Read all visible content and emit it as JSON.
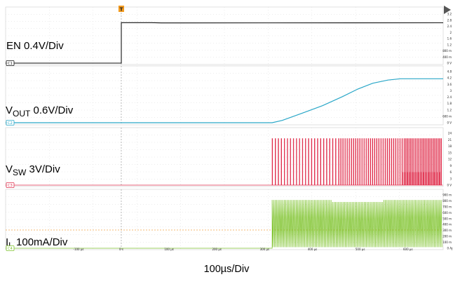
{
  "chart_data": {
    "type": "line",
    "timebase": "100µs/Div",
    "trigger_marker": "T",
    "x_tick_labels": [
      "-100 µs",
      "0 s",
      "100 µs",
      "200 µs",
      "300 µs",
      "400 µs",
      "500 µs",
      "600 µs",
      "700 µs"
    ],
    "channels": [
      {
        "id": "C1",
        "label_main": "EN 0.4V/Div",
        "label_sub": "",
        "label_tail": "",
        "color": "#111111",
        "scale_labels": [
          "3.2",
          "2.8",
          "2.4",
          "2",
          "1.6",
          "1.2",
          "800 m",
          "400 m",
          "0 V"
        ],
        "waveform": "step",
        "points": [
          [
            -230,
            0
          ],
          [
            0,
            0
          ],
          [
            0,
            2.64
          ],
          [
            60,
            2.64
          ],
          [
            80,
            2.62
          ],
          [
            640,
            2.63
          ]
        ]
      },
      {
        "id": "C2",
        "label_main": "V",
        "label_sub": "OUT",
        "label_tail": " 0.6V/Div",
        "color": "#2aa7c8",
        "scale_labels": [
          "4.8",
          "4.2",
          "3.6",
          "3",
          "2.4",
          "1.8",
          "1.2",
          "600 m",
          "0 V"
        ],
        "waveform": "soft-start ramp",
        "points": [
          [
            -230,
            0
          ],
          [
            300,
            0
          ],
          [
            320,
            0.22
          ],
          [
            360,
            0.9
          ],
          [
            400,
            1.6
          ],
          [
            440,
            2.45
          ],
          [
            470,
            3.15
          ],
          [
            500,
            3.7
          ],
          [
            530,
            4.0
          ],
          [
            555,
            4.12
          ],
          [
            580,
            4.12
          ],
          [
            640,
            4.12
          ]
        ]
      },
      {
        "id": "C3",
        "label_main": "V",
        "label_sub": "SW",
        "label_tail": " 3V/Div",
        "color": "#e0304e",
        "scale_labels": [
          "24",
          "21",
          "18",
          "15",
          "12",
          "9",
          "6",
          "3",
          "0 V"
        ],
        "waveform": "switching pulses",
        "points": [
          [
            -230,
            0
          ],
          [
            300,
            0
          ],
          [
            300,
            21.5
          ],
          [
            640,
            21.5
          ]
        ]
      },
      {
        "id": "C4",
        "label_main": "I",
        "label_sub": "L",
        "label_tail": " 100mA/Div",
        "color": "#7ec32c",
        "scale_labels": [
          "900 m",
          "800 m",
          "700 m",
          "600 m",
          "500 m",
          "400 m",
          "300 m",
          "200 m",
          "100 m",
          "0 A"
        ],
        "waveform": "triangular inductor ripple",
        "points": [
          [
            -230,
            0
          ],
          [
            300,
            0
          ],
          [
            300,
            0.85
          ],
          [
            640,
            0.85
          ]
        ]
      }
    ]
  }
}
